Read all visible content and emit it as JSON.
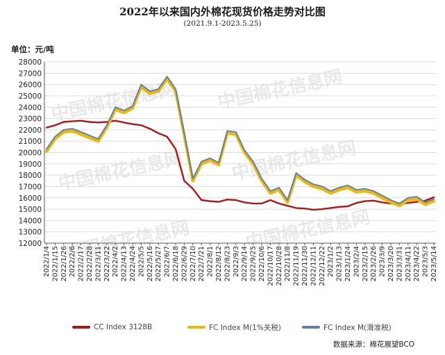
{
  "title": "2022年以来国内外棉花现货价格走势对比图",
  "subtitle": "(2021.9.1-2023.5.25)",
  "unit": "单位：元/吨",
  "source": "数据来源：棉花展望BCO",
  "watermark": "中国棉花信息网",
  "colors": {
    "cc": "#b01515",
    "fc1": "#f2b705",
    "fcs": "#5b82ad",
    "grid": "#dcdcdc",
    "axis": "#555555"
  },
  "chart_data": {
    "type": "line",
    "title": "2022年以来国内外棉花现货价格走势对比图",
    "subtitle": "(2021.9.1-2023.5.25)",
    "ylabel": "单位：元/吨",
    "ylim": [
      12000,
      28000
    ],
    "yticks": [
      12000,
      13000,
      14000,
      15000,
      16000,
      17000,
      18000,
      19000,
      20000,
      21000,
      22000,
      23000,
      24000,
      25000,
      26000,
      27000,
      28000
    ],
    "xlim": [
      "2022-01-04",
      "2023-05-14"
    ],
    "categories": [
      "2022/1/4",
      "2022/1/15",
      "2022/1/26",
      "2022/2/6",
      "2022/2/17",
      "2022/2/28",
      "2022/3/11",
      "2022/3/22",
      "2022/4/2",
      "2022/4/13",
      "2022/4/24",
      "2022/5/5",
      "2022/5/16",
      "2022/5/27",
      "2022/6/7",
      "2022/6/18",
      "2022/6/29",
      "2022/7/10",
      "2022/7/21",
      "2022/8/1",
      "2022/8/12",
      "2022/8/23",
      "2022/9/3",
      "2022/9/14",
      "2022/9/25",
      "2022/10/6",
      "2022/10/17",
      "2022/10/28",
      "2022/11/8",
      "2022/11/19",
      "2022/11/30",
      "2022/12/11",
      "2022/12/22",
      "2023/1/2",
      "2023/1/13",
      "2023/1/24",
      "2023/2/4",
      "2023/2/15",
      "2023/2/26",
      "2023/3/9",
      "2023/3/20",
      "2023/3/31",
      "2023/4/11",
      "2023/4/22",
      "2023/5/3",
      "2023/5/14"
    ],
    "grid": true,
    "legend_position": "bottom",
    "series": [
      {
        "name": "CC Index 3128B",
        "values": [
          22200,
          22400,
          22700,
          22750,
          22800,
          22700,
          22650,
          22700,
          22800,
          22650,
          22500,
          22400,
          22100,
          21700,
          21400,
          20300,
          17500,
          16800,
          15800,
          15700,
          15650,
          15850,
          15800,
          15600,
          15500,
          15500,
          15800,
          15500,
          15300,
          15100,
          15050,
          14950,
          15000,
          15100,
          15200,
          15250,
          15550,
          15700,
          15750,
          15600,
          15500,
          15450,
          15550,
          15650,
          15750,
          16050
        ]
      },
      {
        "name": "FC Index M(1%关税)",
        "values": [
          20100,
          21200,
          21800,
          21900,
          21600,
          21300,
          21000,
          22200,
          23800,
          23500,
          23900,
          25800,
          25200,
          25400,
          26500,
          25400,
          21500,
          17500,
          19000,
          19300,
          18900,
          21700,
          21600,
          20000,
          19000,
          17500,
          16400,
          16700,
          15600,
          18000,
          17400,
          17000,
          16800,
          16400,
          16700,
          16900,
          16500,
          16600,
          16400,
          16000,
          15600,
          15300,
          15800,
          15900,
          15400,
          15700
        ]
      },
      {
        "name": "FC Index M(滑准税)",
        "values": [
          20300,
          21400,
          22000,
          22100,
          21800,
          21500,
          21200,
          22400,
          24000,
          23700,
          24100,
          26000,
          25400,
          25600,
          26700,
          25600,
          21700,
          17700,
          19200,
          19500,
          19100,
          21900,
          21800,
          20200,
          19200,
          17700,
          16600,
          16900,
          15800,
          18200,
          17600,
          17200,
          17000,
          16600,
          16900,
          17100,
          16700,
          16800,
          16600,
          16200,
          15800,
          15500,
          16000,
          16100,
          15600,
          15900
        ]
      }
    ]
  }
}
